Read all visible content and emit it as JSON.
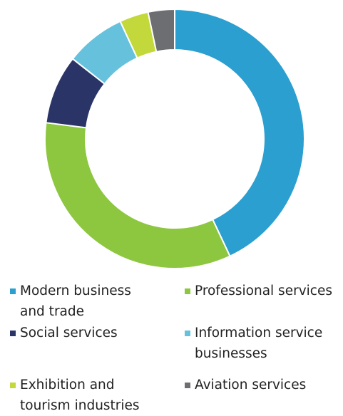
{
  "chart_data": {
    "type": "donut",
    "series": [
      {
        "name": "Modern business and trade",
        "color": "#2a9fd0",
        "values": [
          43
        ]
      },
      {
        "name": "Professional services",
        "color": "#8dc63f",
        "values": [
          34
        ]
      },
      {
        "name": "Social services",
        "color": "#2b3467",
        "values": [
          8.6
        ]
      },
      {
        "name": "Information service businesses",
        "color": "#66c2dc",
        "values": [
          7.5
        ]
      },
      {
        "name": "Exhibition and tourism industries",
        "color": "#c3d83a",
        "values": [
          3.6
        ]
      },
      {
        "name": "Aviation services",
        "color": "#6d6e71",
        "values": [
          3.3
        ]
      }
    ]
  }
}
